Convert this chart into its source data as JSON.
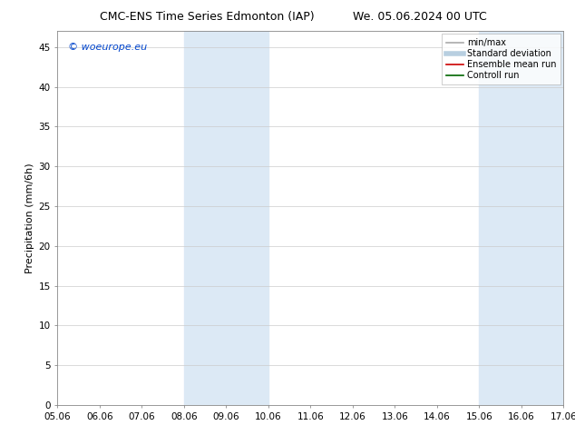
{
  "title_left": "CMC-ENS Time Series Edmonton (IAP)",
  "title_right": "We. 05.06.2024 00 UTC",
  "ylabel": "Precipitation (mm/6h)",
  "ylim": [
    0,
    47
  ],
  "yticks": [
    0,
    5,
    10,
    15,
    20,
    25,
    30,
    35,
    40,
    45
  ],
  "xtick_labels": [
    "05.06",
    "06.06",
    "07.06",
    "08.06",
    "09.06",
    "10.06",
    "11.06",
    "12.06",
    "13.06",
    "14.06",
    "15.06",
    "16.06",
    "17.06"
  ],
  "shaded_regions": [
    {
      "xstart": 8.0,
      "xend": 10.0,
      "color": "#dce9f5"
    },
    {
      "xstart": 15.0,
      "xend": 17.0,
      "color": "#dce9f5"
    }
  ],
  "watermark_text": "© woeurope.eu",
  "watermark_color": "#0044cc",
  "legend_entries": [
    {
      "label": "min/max",
      "color": "#aaaaaa",
      "linestyle": "-",
      "linewidth": 1.2
    },
    {
      "label": "Standard deviation",
      "color": "#b8cfe0",
      "linestyle": "-",
      "linewidth": 4
    },
    {
      "label": "Ensemble mean run",
      "color": "#cc0000",
      "linestyle": "-",
      "linewidth": 1.2
    },
    {
      "label": "Controll run",
      "color": "#006600",
      "linestyle": "-",
      "linewidth": 1.2
    }
  ],
  "background_color": "#ffffff",
  "plot_bg_color": "#ffffff",
  "grid_color": "#cccccc",
  "title_fontsize": 9,
  "axis_label_fontsize": 8,
  "tick_fontsize": 7.5,
  "watermark_fontsize": 8,
  "legend_fontsize": 7
}
